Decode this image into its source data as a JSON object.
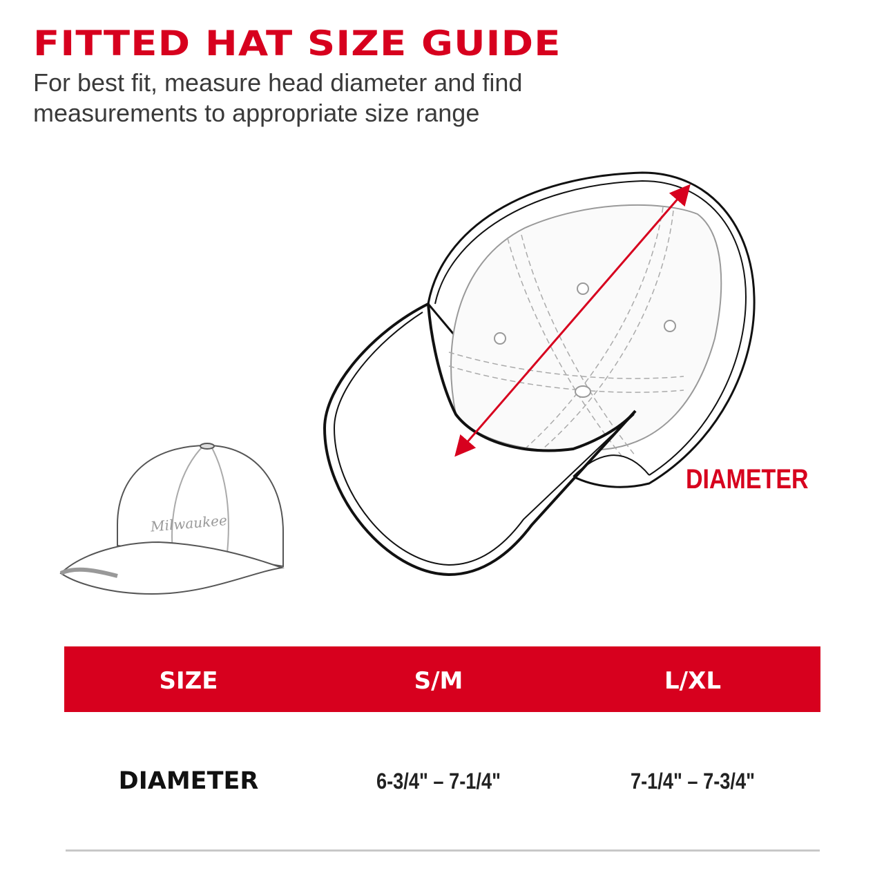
{
  "header": {
    "title": "FITTED HAT SIZE GUIDE",
    "subtitle_line1": "For best fit, measure head diameter and find",
    "subtitle_line2": "measurements to appropriate size range"
  },
  "illustration": {
    "diameter_label": "DIAMETER",
    "logo_text": "Milwaukee",
    "accent_color": "#d7001e"
  },
  "table": {
    "headers": [
      "SIZE",
      "S/M",
      "L/XL"
    ],
    "rows": [
      {
        "label": "DIAMETER",
        "values": [
          "6-3/4\" – 7-1/4\"",
          "7-1/4\" – 7-3/4\""
        ]
      }
    ],
    "header_bg": "#d7001e"
  }
}
